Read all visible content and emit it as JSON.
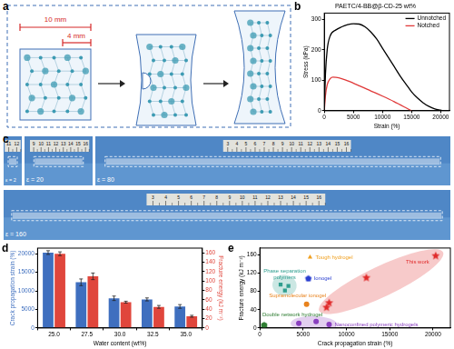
{
  "panel_labels": [
    "a",
    "b",
    "c",
    "d",
    "e"
  ],
  "panel_a": {
    "dimensions": [
      "10 mm",
      "4 mm"
    ]
  },
  "panel_c": {
    "photos": [
      {
        "strain_label": "ε = 2",
        "ruler": [
          "11",
          "12"
        ]
      },
      {
        "strain_label": "ε = 20",
        "ruler": [
          "9",
          "10",
          "11",
          "12",
          "13",
          "14",
          "15",
          "16"
        ]
      },
      {
        "strain_label": "ε = 80",
        "ruler": [
          "3",
          "4",
          "5",
          "6",
          "7",
          "8",
          "9",
          "10",
          "11",
          "12",
          "13",
          "14",
          "15",
          "16"
        ]
      },
      {
        "strain_label": "ε = 160",
        "ruler": [
          "3",
          "4",
          "5",
          "6",
          "7",
          "8",
          "9",
          "10",
          "11",
          "12",
          "13",
          "14",
          "15",
          "16"
        ]
      }
    ]
  },
  "chart_data": [
    {
      "type": "line",
      "title": "PAETC/4-BB@β-CD-25 wt%",
      "x_label": "Strain (%)",
      "y_label": "Stress (kPa)",
      "xlim": [
        0,
        21500
      ],
      "xticks": [
        0,
        5000,
        10000,
        15000,
        20000
      ],
      "ylim": [
        0,
        320
      ],
      "yticks": [
        0,
        100,
        200,
        300
      ],
      "legend": "upper right",
      "series": [
        {
          "name": "Unnotched",
          "color": "#000000",
          "x": [
            0,
            200,
            500,
            1000,
            2000,
            3000,
            4000,
            5000,
            6000,
            7000,
            8000,
            9000,
            10000,
            11000,
            12000,
            13000,
            14000,
            15000,
            16000,
            17000,
            18000,
            19000,
            20000,
            20500
          ],
          "values": [
            0,
            120,
            200,
            245,
            265,
            275,
            282,
            285,
            284,
            275,
            258,
            235,
            205,
            175,
            145,
            115,
            88,
            62,
            42,
            26,
            14,
            6,
            2,
            0
          ]
        },
        {
          "name": "Notched",
          "color": "#e03a3a",
          "x": [
            0,
            200,
            500,
            1000,
            1500,
            2500,
            4000,
            6000,
            8000,
            10000,
            12000,
            13000,
            14000,
            14500,
            15000
          ],
          "values": [
            0,
            50,
            85,
            105,
            110,
            108,
            98,
            82,
            65,
            48,
            30,
            20,
            10,
            5,
            0
          ]
        }
      ]
    },
    {
      "type": "bar",
      "x_label": "Water content (wt%)",
      "categories": [
        "25.0",
        "27.5",
        "30.0",
        "32.5",
        "35.0"
      ],
      "y_label": "Crack propagation strain (%)",
      "ylim": [
        0,
        21500
      ],
      "yticks": [
        0,
        5000,
        10000,
        15000,
        20000
      ],
      "y2_label": "Fracture energy (kJ m⁻²)",
      "y2lim": [
        0,
        170
      ],
      "y2ticks": [
        0,
        20,
        40,
        60,
        80,
        100,
        120,
        140,
        160
      ],
      "series": [
        {
          "color": "#3f6fbf",
          "values": [
            20300,
            12300,
            8000,
            7700,
            5800
          ],
          "errors": [
            500,
            900,
            600,
            400,
            500
          ]
        },
        {
          "color": "#e0463c",
          "axis": "y2",
          "values": [
            158,
            110,
            55,
            45,
            25
          ],
          "errors": [
            4,
            7,
            2,
            3,
            2
          ]
        }
      ]
    },
    {
      "type": "scatter",
      "x_label": "Crack propagation strain (%)",
      "y_label": "Fracture energy (kJ m⁻²)",
      "xlim": [
        0,
        22000
      ],
      "xticks": [
        0,
        5000,
        10000,
        15000,
        20000
      ],
      "ylim": [
        0,
        175
      ],
      "yticks": [
        0,
        40,
        80,
        120,
        160
      ],
      "series": [
        {
          "name": "This work",
          "color": "#e02a2a",
          "marker": "star",
          "x": [
            20300,
            12300,
            8000,
            7700
          ],
          "values": [
            158,
            110,
            55,
            45
          ]
        },
        {
          "name": "Tough hydrogel",
          "color": "#f0a020",
          "marker": "triangle",
          "x": [
            5800
          ],
          "values": [
            155
          ]
        },
        {
          "name": "Ionogel",
          "color": "#2a3fd0",
          "marker": "pentagon",
          "x": [
            5600
          ],
          "values": [
            108
          ]
        },
        {
          "name": "Phase separation polymers",
          "color": "#2f9e8f",
          "marker": "square",
          "x": [
            2400,
            2900,
            3300
          ],
          "values": [
            95,
            82,
            92
          ]
        },
        {
          "name": "Supramolecular ionogel",
          "color": "#e8831e",
          "marker": "circle",
          "x": [
            5400
          ],
          "values": [
            52
          ]
        },
        {
          "name": "Double network hydrogel",
          "color": "#2e7d32",
          "marker": "hexagon",
          "x": [
            500
          ],
          "values": [
            6
          ]
        },
        {
          "name": "Nanoconfined polymeric hydrogels",
          "color": "#8a3fc0",
          "marker": "circle",
          "x": [
            4500,
            6500,
            8000
          ],
          "values": [
            10,
            14,
            8
          ]
        }
      ]
    }
  ]
}
